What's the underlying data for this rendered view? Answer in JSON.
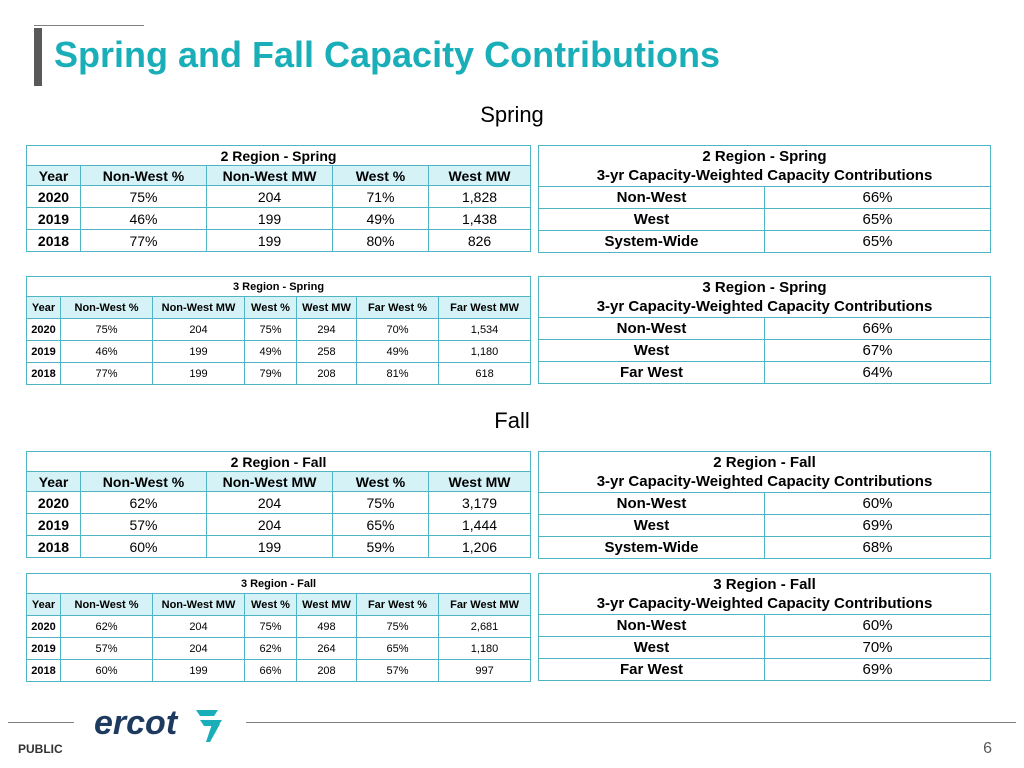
{
  "title": "Spring and Fall Capacity Contributions",
  "spring": {
    "heading": "Spring",
    "two_region": {
      "caption": "2 Region - Spring",
      "headers": [
        "Year",
        "Non-West %",
        "Non-West MW",
        "West %",
        "West MW"
      ],
      "rows": [
        [
          "2020",
          "75%",
          "204",
          "71%",
          "1,828"
        ],
        [
          "2019",
          "46%",
          "199",
          "49%",
          "1,438"
        ],
        [
          "2018",
          "77%",
          "199",
          "80%",
          "826"
        ]
      ]
    },
    "two_region_weighted": {
      "caption1": "2 Region - Spring",
      "caption2": "3-yr Capacity-Weighted Capacity Contributions",
      "rows": [
        [
          "Non-West",
          "66%"
        ],
        [
          "West",
          "65%"
        ],
        [
          "System-Wide",
          "65%"
        ]
      ]
    },
    "three_region": {
      "caption": "3 Region - Spring",
      "headers": [
        "Year",
        "Non-West %",
        "Non-West MW",
        "West %",
        "West MW",
        "Far West %",
        "Far West MW"
      ],
      "rows": [
        [
          "2020",
          "75%",
          "204",
          "75%",
          "294",
          "70%",
          "1,534"
        ],
        [
          "2019",
          "46%",
          "199",
          "49%",
          "258",
          "49%",
          "1,180"
        ],
        [
          "2018",
          "77%",
          "199",
          "79%",
          "208",
          "81%",
          "618"
        ]
      ]
    },
    "three_region_weighted": {
      "caption1": "3 Region - Spring",
      "caption2": "3-yr Capacity-Weighted Capacity Contributions",
      "rows": [
        [
          "Non-West",
          "66%"
        ],
        [
          "West",
          "67%"
        ],
        [
          "Far West",
          "64%"
        ]
      ]
    }
  },
  "fall": {
    "heading": "Fall",
    "two_region": {
      "caption": "2 Region - Fall",
      "headers": [
        "Year",
        "Non-West %",
        "Non-West MW",
        "West %",
        "West MW"
      ],
      "rows": [
        [
          "2020",
          "62%",
          "204",
          "75%",
          "3,179"
        ],
        [
          "2019",
          "57%",
          "204",
          "65%",
          "1,444"
        ],
        [
          "2018",
          "60%",
          "199",
          "59%",
          "1,206"
        ]
      ]
    },
    "two_region_weighted": {
      "caption1": "2 Region - Fall",
      "caption2": "3-yr Capacity-Weighted Capacity Contributions",
      "rows": [
        [
          "Non-West",
          "60%"
        ],
        [
          "West",
          "69%"
        ],
        [
          "System-Wide",
          "68%"
        ]
      ]
    },
    "three_region": {
      "caption": "3 Region - Fall",
      "headers": [
        "Year",
        "Non-West %",
        "Non-West MW",
        "West %",
        "West MW",
        "Far West %",
        "Far West MW"
      ],
      "rows": [
        [
          "2020",
          "62%",
          "204",
          "75%",
          "498",
          "75%",
          "2,681"
        ],
        [
          "2019",
          "57%",
          "204",
          "62%",
          "264",
          "65%",
          "1,180"
        ],
        [
          "2018",
          "60%",
          "199",
          "66%",
          "208",
          "57%",
          "997"
        ]
      ]
    },
    "three_region_weighted": {
      "caption1": "3 Region - Fall",
      "caption2": "3-yr Capacity-Weighted Capacity Contributions",
      "rows": [
        [
          "Non-West",
          "60%"
        ],
        [
          "West",
          "70%"
        ],
        [
          "Far West",
          "69%"
        ]
      ]
    }
  },
  "footer": {
    "label": "PUBLIC",
    "logo_text": "ercot",
    "page_number": "6"
  },
  "colors": {
    "title": "#19aeb8",
    "header_fill": "#d5f2f7",
    "border": "#4fb4c4",
    "logo_text": "#1f3a5f",
    "logo_mark": "#19aeb8"
  }
}
